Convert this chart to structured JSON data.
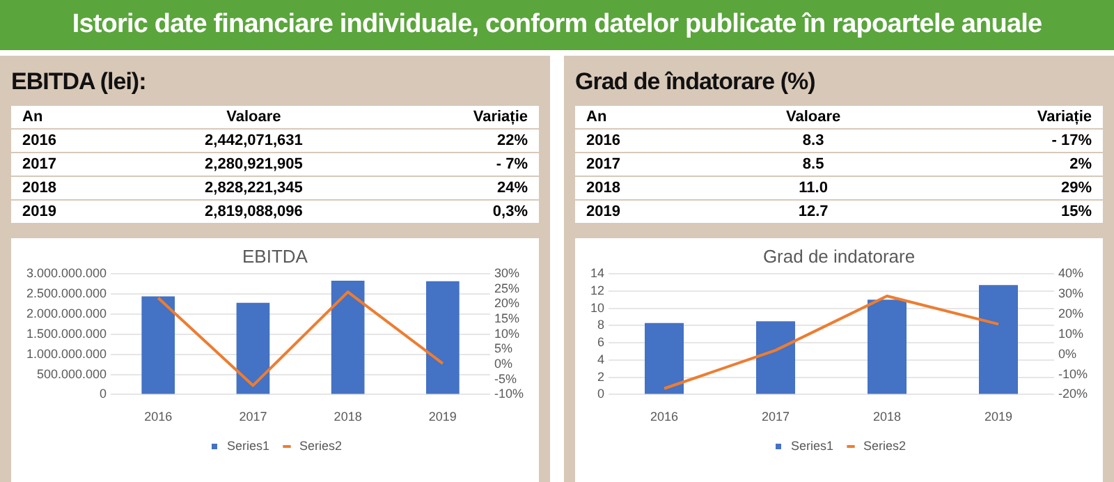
{
  "chart_data": [
    {
      "type": "bar",
      "title": "EBITDA",
      "categories": [
        "2016",
        "2017",
        "2018",
        "2019"
      ],
      "annotations": [
        "Istoric date financiare individuale, conform datelor publicate  în rapoartele anuale",
        "EBITDA (lei):",
        "An",
        "Valoare",
        "Variație",
        "2016",
        "2,442,071,631",
        "22%",
        "2017",
        "2,280,921,905",
        "- 7%",
        "2018",
        "2,828,221,345",
        "24%",
        "2019",
        "2,819,088,096",
        "0,3%"
      ],
      "series": [
        {
          "name": "Series1",
          "color": "#4472c4",
          "values": [
            2442071631,
            2280921905,
            2828221345,
            2819088096
          ]
        },
        {
          "name": "Series2",
          "type": "line",
          "axis": "y2",
          "color": "#ed7d31",
          "values": [
            22,
            -7,
            24,
            0.3
          ]
        }
      ],
      "ylim": [
        0,
        3000000000
      ],
      "yticks": [
        0,
        {
          "value": 500000000,
          "label": "500.000.000"
        },
        {
          "value": 1000000000,
          "label": "1.000.000.000"
        },
        {
          "value": 1500000000,
          "label": "1.500.000.000"
        },
        {
          "value": 2000000000,
          "label": "2.000.000.000"
        },
        {
          "value": 2500000000,
          "label": "2.500.000.000"
        },
        {
          "value": 3000000000,
          "label": "3.000.000.000"
        }
      ],
      "y2lim": [
        -10,
        30
      ],
      "y2ticks": [
        {
          "value": -10,
          "label": "-10%"
        },
        {
          "value": -5,
          "label": "-5%"
        },
        {
          "value": 0,
          "label": "0%"
        },
        {
          "value": 5,
          "label": "5%"
        },
        {
          "value": 10,
          "label": "10%"
        },
        {
          "value": 15,
          "label": "15%"
        },
        {
          "value": 20,
          "label": "20%"
        },
        {
          "value": 25,
          "label": "25%"
        },
        {
          "value": 30,
          "label": "30%"
        }
      ],
      "grid": "y",
      "legend": "bottom"
    },
    {
      "type": "bar",
      "title": "Grad de indatorare",
      "categories": [
        "2016",
        "2017",
        "2018",
        "2019"
      ],
      "annotations": [
        "Grad de îndatorare (%)",
        "An",
        "Valoare",
        "Variație",
        "2016",
        "8.3",
        "- 17%",
        "2017",
        "8.5",
        "2%",
        "2018",
        "11.0",
        "29%",
        "2019",
        "12.7",
        "15%"
      ],
      "series": [
        {
          "name": "Series1",
          "color": "#4472c4",
          "values": [
            8.3,
            8.5,
            11.0,
            12.7
          ]
        },
        {
          "name": "Series2",
          "type": "line",
          "axis": "y2",
          "color": "#ed7d31",
          "values": [
            -17,
            2,
            29,
            15
          ]
        }
      ],
      "ylim": [
        0,
        14
      ],
      "yticks": [
        0,
        2,
        4,
        6,
        8,
        10,
        12,
        14
      ],
      "y2lim": [
        -20,
        40
      ],
      "y2ticks": [
        {
          "value": -20,
          "label": "-20%"
        },
        {
          "value": -10,
          "label": "-10%"
        },
        {
          "value": 0,
          "label": "0%"
        },
        {
          "value": 10,
          "label": "10%"
        },
        {
          "value": 20,
          "label": "20%"
        },
        {
          "value": 30,
          "label": "30%"
        },
        {
          "value": 40,
          "label": "40%"
        }
      ],
      "grid": "y",
      "legend": "bottom"
    }
  ]
}
